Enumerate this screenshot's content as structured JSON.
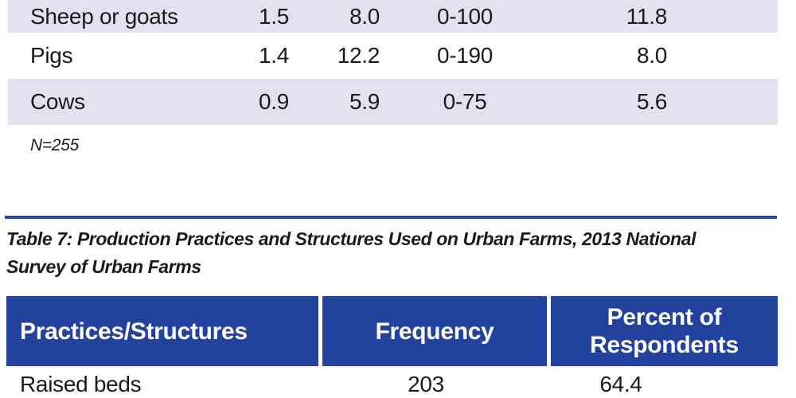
{
  "colors": {
    "row_shade": "#e3e1ef",
    "header_blue": "#23429d",
    "rule_blue": "#2e4d9d",
    "header_text": "#ffffff",
    "body_text": "#1a1a1a"
  },
  "livestock_table": {
    "rows": [
      {
        "label": "Sheep or goats",
        "v1": "1.5",
        "v2": "8.0",
        "v3": "0-100",
        "v4": "11.8"
      },
      {
        "label": "Pigs",
        "v1": "1.4",
        "v2": "12.2",
        "v3": "0-190",
        "v4": "8.0"
      },
      {
        "label": "Cows",
        "v1": "0.9",
        "v2": "5.9",
        "v3": "0-75",
        "v4": "5.6"
      }
    ],
    "note": "N=255"
  },
  "table7": {
    "caption_lines": [
      "Table 7: Production Practices and Structures Used on Urban Farms, 2013 National",
      "Survey of Urban Farms"
    ],
    "caption_full": "Table 7: Production Practices and Structures Used on Urban Farms, 2013 National Survey of Urban Farms",
    "columns": [
      "Practices/Structures",
      "Frequency",
      "Percent of Respondents"
    ],
    "rows": [
      {
        "practice": "Raised beds",
        "frequency": "203",
        "percent": "64.4"
      }
    ]
  }
}
